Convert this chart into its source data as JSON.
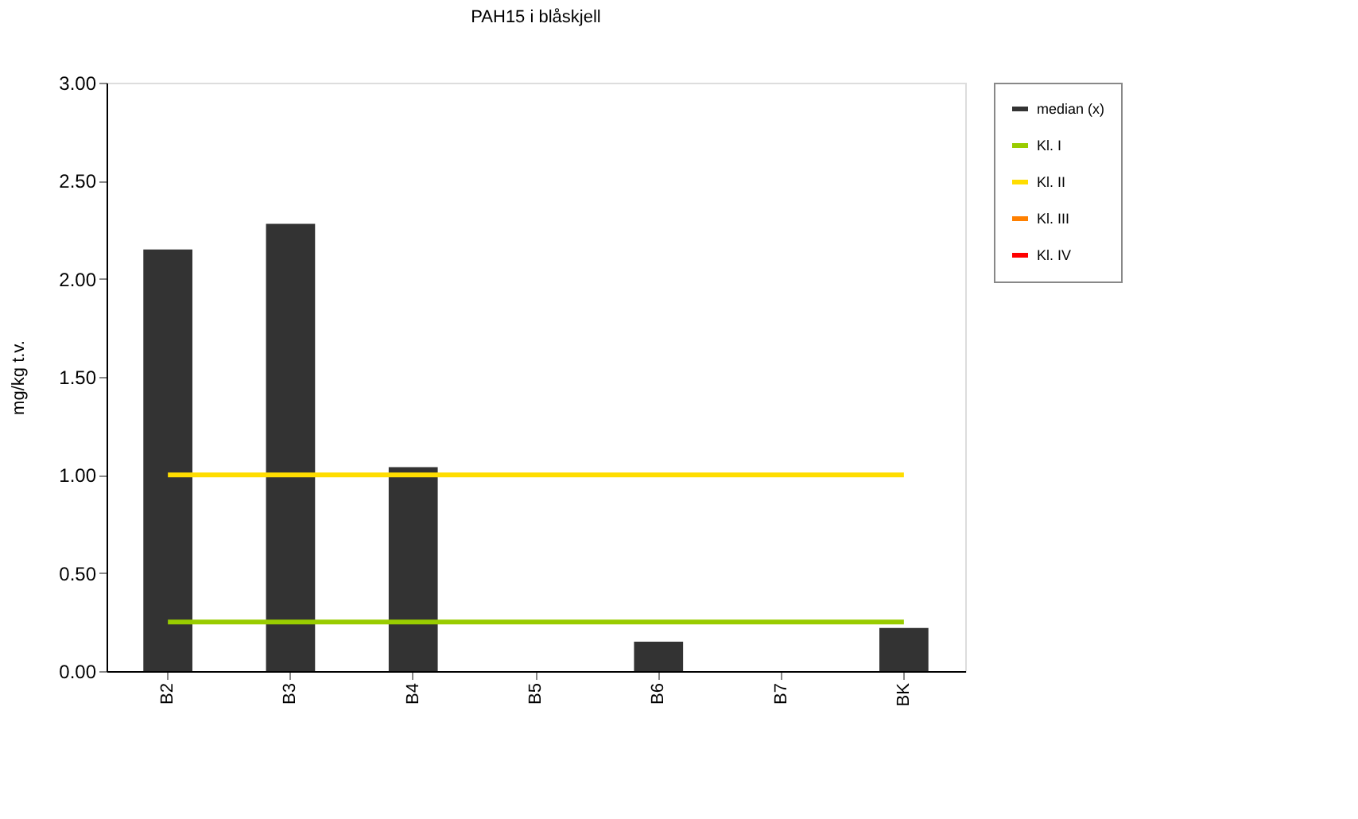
{
  "chart_data": {
    "type": "bar",
    "title": "PAH15 i blåskjell",
    "ylabel": "mg/kg t.v.",
    "categories": [
      "B2",
      "B3",
      "B4",
      "B5",
      "B6",
      "B7",
      "BK"
    ],
    "series": [
      {
        "name": "median (x)",
        "color": "#333333",
        "values": [
          2.15,
          2.28,
          1.04,
          null,
          0.15,
          null,
          0.22
        ]
      },
      {
        "name": "Kl. I",
        "type": "line",
        "color": "#99cc00",
        "values": [
          0.25,
          0.25,
          0.25,
          0.25,
          0.25,
          0.25,
          0.25
        ]
      },
      {
        "name": "Kl. II",
        "type": "line",
        "color": "#ffdd00",
        "values": [
          1.0,
          1.0,
          1.0,
          1.0,
          1.0,
          1.0,
          1.0
        ]
      },
      {
        "name": "Kl. III",
        "type": "line",
        "color": "#ff8000",
        "values": [
          null,
          null,
          null,
          null,
          null,
          null,
          null
        ]
      },
      {
        "name": "Kl. IV",
        "type": "line",
        "color": "#ff0000",
        "values": [
          null,
          null,
          null,
          null,
          null,
          null,
          null
        ]
      }
    ],
    "ylim": [
      0,
      3
    ],
    "yticks": [
      {
        "value": 0,
        "label": "0.00"
      },
      {
        "value": 0.5,
        "label": "0.50"
      },
      {
        "value": 1,
        "label": "1.00"
      },
      {
        "value": 1.5,
        "label": "1.50"
      },
      {
        "value": 2,
        "label": "2.00"
      },
      {
        "value": 2.5,
        "label": "2.50"
      },
      {
        "value": 3,
        "label": "3.00"
      }
    ],
    "grid": false,
    "legend": "right",
    "marker": "none",
    "line_style": "solid"
  }
}
